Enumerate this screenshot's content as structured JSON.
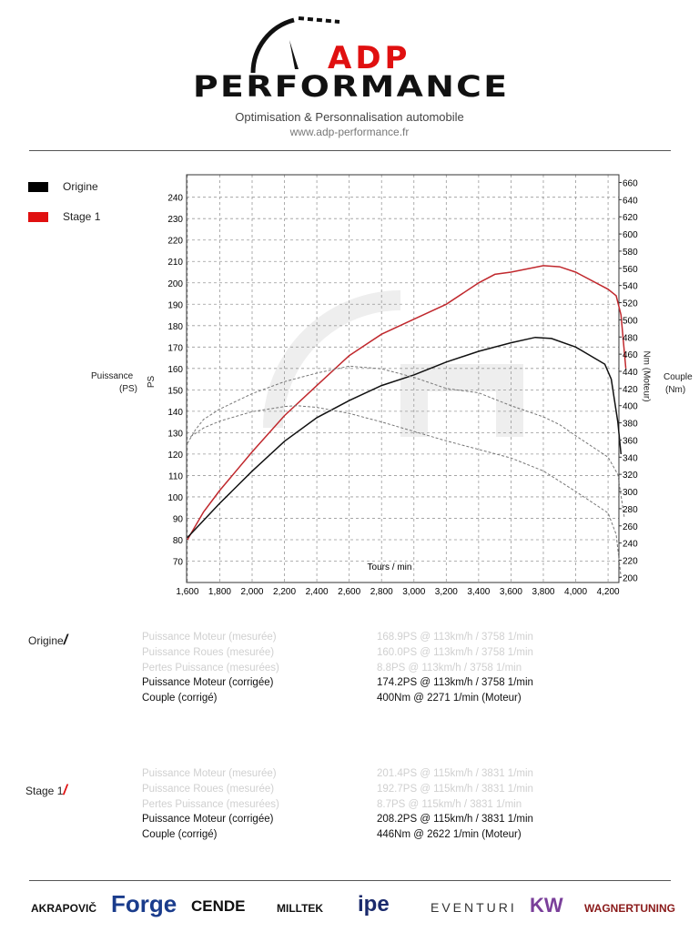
{
  "header": {
    "logo_top": "ADP",
    "logo_bottom": "PERFORMANCE",
    "tagline": "Optimisation & Personnalisation automobile",
    "url": "www.adp-performance.fr"
  },
  "legend": [
    {
      "label": "Origine",
      "color": "#000000"
    },
    {
      "label": "Stage 1",
      "color": "#e01010"
    }
  ],
  "axis_labels": {
    "left_outer": "Puissance",
    "left_outer_unit": "(PS)",
    "left": "PS",
    "right": "Nm (Moteur)",
    "right_outer": "Couple",
    "right_outer_unit": "(Nm)",
    "x": "Tours / min"
  },
  "chart_data": {
    "type": "line",
    "xlabel": "Tours / min",
    "ylabel": "PS",
    "y2label": "Nm (Moteur)",
    "xlim": [
      1595,
      4267
    ],
    "ylim": [
      60,
      250.5
    ],
    "y2lim": [
      194,
      669
    ],
    "grid": true,
    "legend_placement": "top-left outside",
    "x_ticks": [
      1600,
      1800,
      2000,
      2200,
      2400,
      2600,
      2800,
      3000,
      3200,
      3400,
      3600,
      3800,
      4000,
      4200
    ],
    "x_tick_labels": [
      "1,600",
      "1,800",
      "2,000",
      "2,200",
      "2,400",
      "2,600",
      "2,800",
      "3,000",
      "3,200",
      "3,400",
      "3,600",
      "3,800",
      "4,000",
      "4,200"
    ],
    "y_ticks": [
      70,
      80,
      90,
      100,
      110,
      120,
      130,
      140,
      150,
      160,
      170,
      180,
      190,
      200,
      210,
      220,
      230,
      240
    ],
    "y2_ticks": [
      200,
      220,
      240,
      260,
      280,
      300,
      320,
      340,
      360,
      380,
      400,
      420,
      440,
      460,
      480,
      500,
      520,
      540,
      560,
      580,
      600,
      620,
      640,
      660
    ],
    "series": [
      {
        "name": "Stage 1",
        "kind": "power",
        "axis": "left",
        "color": "#c0282d",
        "style": "solid",
        "x": [
          1600,
          1700,
          1800,
          2000,
          2200,
          2400,
          2600,
          2800,
          3000,
          3200,
          3400,
          3500,
          3600,
          3800,
          3900,
          4000,
          4200,
          4250,
          4280,
          4310
        ],
        "y": [
          80,
          93,
          103,
          121,
          138,
          152,
          166,
          176,
          183,
          190,
          200,
          204,
          205,
          208,
          207.5,
          205,
          197,
          194,
          185,
          160
        ]
      },
      {
        "name": "Origine",
        "kind": "power",
        "axis": "left",
        "color": "#111111",
        "style": "solid",
        "x": [
          1600,
          1800,
          2000,
          2200,
          2400,
          2600,
          2800,
          3000,
          3200,
          3400,
          3600,
          3750,
          3850,
          4000,
          4180,
          4220,
          4260,
          4280
        ],
        "y": [
          81,
          97,
          112,
          126,
          137,
          145,
          152,
          157,
          163,
          168,
          172,
          174.5,
          174,
          170,
          162,
          155,
          135,
          120
        ]
      },
      {
        "name": "Stage 1",
        "kind": "torque",
        "axis": "right",
        "color": "#777777",
        "style": "dashed",
        "x": [
          1600,
          1650,
          1700,
          1800,
          2000,
          2200,
          2400,
          2600,
          2800,
          3000,
          3200,
          3400,
          3600,
          3800,
          3900,
          4000,
          4200,
          4260,
          4300
        ],
        "y": [
          356,
          372,
          384,
          396,
          414,
          428,
          438,
          446,
          443,
          433,
          420,
          415,
          400,
          387,
          378,
          365,
          340,
          320,
          270
        ]
      },
      {
        "name": "Origine",
        "kind": "torque",
        "axis": "right",
        "color": "#777777",
        "style": "dashed",
        "x": [
          1620,
          1700,
          1800,
          2000,
          2200,
          2271,
          2400,
          2600,
          2800,
          3000,
          3200,
          3400,
          3600,
          3800,
          4000,
          4200,
          4250,
          4280
        ],
        "y": [
          364,
          374,
          382,
          393,
          399,
          400,
          398,
          391,
          381,
          370,
          359,
          349,
          339,
          324,
          300,
          275,
          250,
          200
        ]
      }
    ]
  },
  "results": [
    {
      "label": "Origine",
      "rows": [
        {
          "name": "Puissance Moteur (mesurée)",
          "value": "168.9PS @ 113km/h / 3758 1/min",
          "dim": true
        },
        {
          "name": "Puissance Roues (mesurée)",
          "value": "160.0PS @ 113km/h / 3758 1/min",
          "dim": true
        },
        {
          "name": "Pertes Puissance (mesurées)",
          "value": "8.8PS @ 113km/h / 3758 1/min",
          "dim": true
        },
        {
          "name": "Puissance Moteur (corrigée)",
          "value": "174.2PS @ 113km/h / 3758 1/min",
          "dim": false
        },
        {
          "name": "Couple (corrigé)",
          "value": "400Nm @ 2271 1/min (Moteur)",
          "dim": false
        }
      ]
    },
    {
      "label": "Stage 1",
      "rows": [
        {
          "name": "Puissance Moteur (mesurée)",
          "value": "201.4PS @ 115km/h / 3831 1/min",
          "dim": true
        },
        {
          "name": "Puissance Roues (mesurée)",
          "value": "192.7PS @ 115km/h / 3831 1/min",
          "dim": true
        },
        {
          "name": "Pertes Puissance (mesurées)",
          "value": "8.7PS @ 115km/h / 3831 1/min",
          "dim": true
        },
        {
          "name": "Puissance Moteur (corrigée)",
          "value": "208.2PS @ 115km/h / 3831 1/min",
          "dim": false
        },
        {
          "name": "Couple (corrigé)",
          "value": "446Nm @ 2622 1/min (Moteur)",
          "dim": false
        }
      ]
    }
  ],
  "footer_brands": [
    {
      "name": "AKRAPOVIČ",
      "color": "#111111"
    },
    {
      "name": "Forge",
      "color": "#1a3c8c"
    },
    {
      "name": "CENDE",
      "color": "#111111"
    },
    {
      "name": "MILLTEK",
      "color": "#111111"
    },
    {
      "name": "ipe",
      "color": "#1a2a6c"
    },
    {
      "name": "EVENTURI",
      "color": "#333333"
    },
    {
      "name": "KW",
      "color": "#7a3f9a"
    },
    {
      "name": "WAGNERTUNING",
      "color": "#8a1a1a"
    }
  ]
}
